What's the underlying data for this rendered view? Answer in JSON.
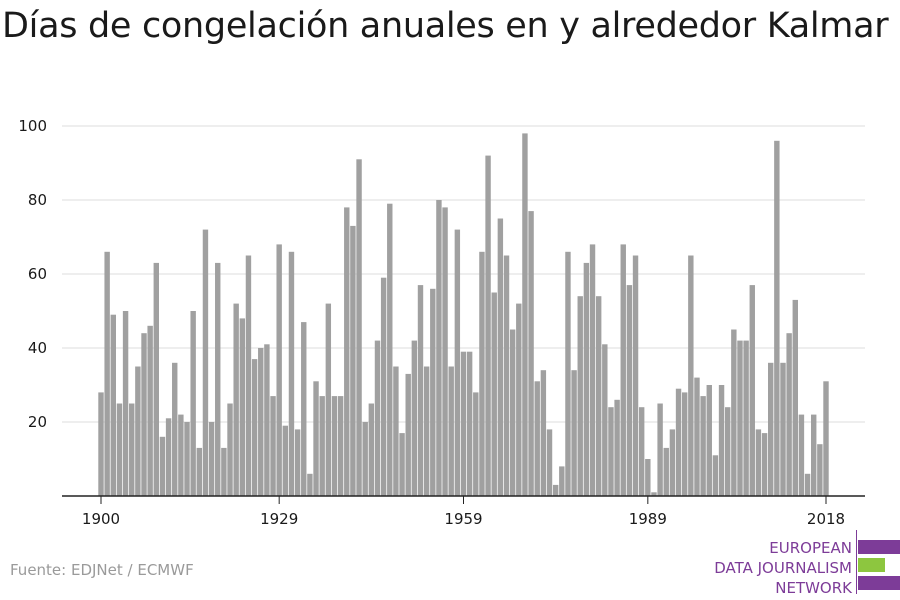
{
  "title": "Días de congelación anuales en y alrededor Kalmar",
  "source": "Fuente: EDJNet / ECMWF",
  "logo": {
    "lines": [
      "EUROPEAN",
      "DATA JOURNALISM",
      "NETWORK"
    ],
    "colors": {
      "purple": "#7d3c98",
      "green": "#8dc63f"
    }
  },
  "colors": {
    "bar": "#a0a0a0",
    "grid": "#dcdcdc",
    "axis": "#222222",
    "text": "#1a1a1a"
  },
  "chart_data": {
    "type": "bar",
    "title": "Días de congelación anuales en y alrededor Kalmar",
    "xlabel": "",
    "ylabel": "",
    "ylim": [
      0,
      100
    ],
    "yticks": [
      20,
      40,
      60,
      80,
      100
    ],
    "xticks": [
      1900,
      1929,
      1959,
      1989,
      2018
    ],
    "grid": true,
    "legend": "none",
    "categories": [
      1900,
      1901,
      1902,
      1903,
      1904,
      1905,
      1906,
      1907,
      1908,
      1909,
      1910,
      1911,
      1912,
      1913,
      1914,
      1915,
      1916,
      1917,
      1918,
      1919,
      1920,
      1921,
      1922,
      1923,
      1924,
      1925,
      1926,
      1927,
      1928,
      1929,
      1930,
      1931,
      1932,
      1933,
      1934,
      1935,
      1936,
      1937,
      1938,
      1939,
      1940,
      1941,
      1942,
      1943,
      1944,
      1945,
      1946,
      1947,
      1948,
      1949,
      1950,
      1951,
      1952,
      1953,
      1954,
      1955,
      1956,
      1957,
      1958,
      1959,
      1960,
      1961,
      1962,
      1963,
      1964,
      1965,
      1966,
      1967,
      1968,
      1969,
      1970,
      1971,
      1972,
      1973,
      1974,
      1975,
      1976,
      1977,
      1978,
      1979,
      1980,
      1981,
      1982,
      1983,
      1984,
      1985,
      1986,
      1987,
      1988,
      1989,
      1990,
      1991,
      1992,
      1993,
      1994,
      1995,
      1996,
      1997,
      1998,
      1999,
      2000,
      2001,
      2002,
      2003,
      2004,
      2005,
      2006,
      2007,
      2008,
      2009,
      2010,
      2011,
      2012,
      2013,
      2014,
      2015,
      2016,
      2017,
      2018
    ],
    "values": [
      28,
      66,
      49,
      25,
      50,
      25,
      35,
      44,
      46,
      63,
      16,
      21,
      36,
      22,
      20,
      50,
      13,
      72,
      20,
      63,
      13,
      25,
      52,
      48,
      65,
      37,
      40,
      41,
      27,
      68,
      19,
      66,
      18,
      47,
      6,
      31,
      27,
      52,
      27,
      27,
      78,
      73,
      91,
      20,
      25,
      42,
      59,
      79,
      35,
      17,
      33,
      42,
      57,
      35,
      56,
      80,
      78,
      35,
      72,
      39,
      39,
      28,
      66,
      92,
      55,
      75,
      65,
      45,
      52,
      98,
      77,
      31,
      34,
      18,
      3,
      8,
      66,
      34,
      54,
      63,
      68,
      54,
      41,
      24,
      26,
      68,
      57,
      65,
      24,
      10,
      1,
      25,
      13,
      18,
      29,
      28,
      65,
      32,
      27,
      30,
      11,
      30,
      24,
      45,
      42,
      42,
      57,
      18,
      17,
      36,
      96,
      36,
      44,
      53,
      22,
      6,
      22,
      14,
      31
    ]
  }
}
